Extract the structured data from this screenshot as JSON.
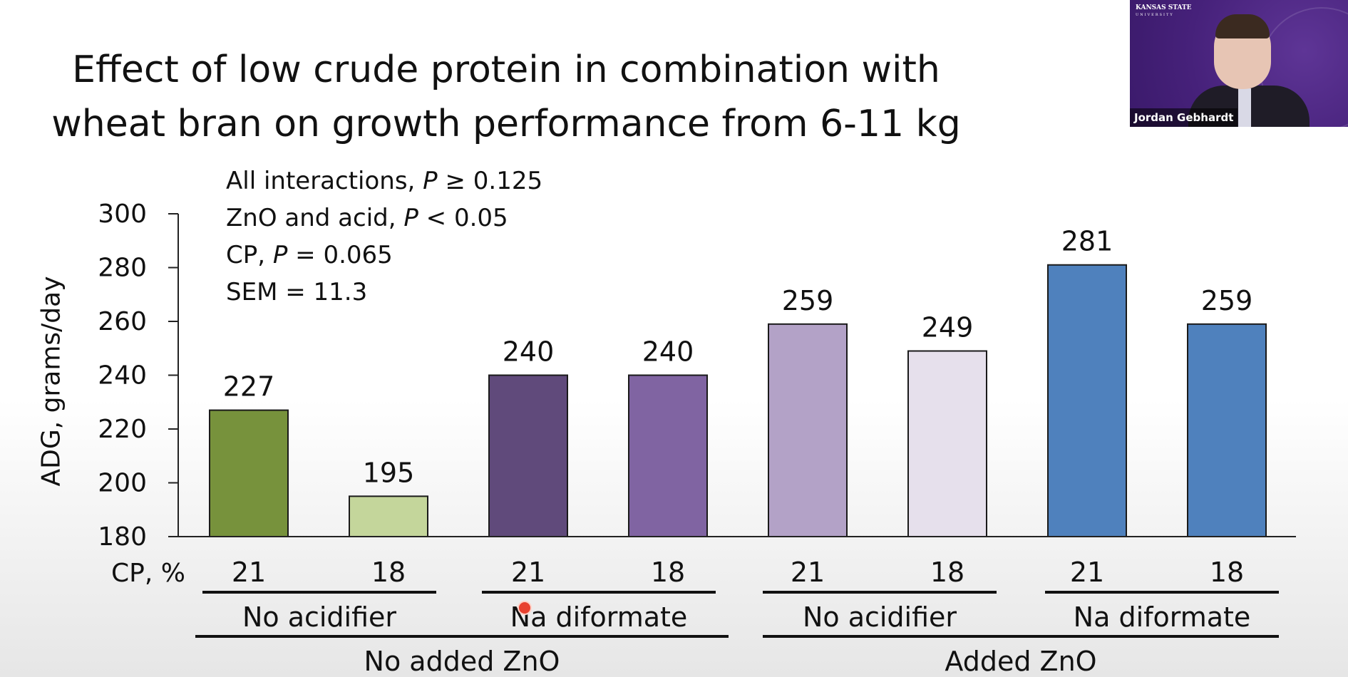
{
  "slide": {
    "title_line1": "Effect of low crude protein in combination with",
    "title_line2": "wheat bran on growth performance from 6-11 kg"
  },
  "stats": [
    {
      "prefix": "All interactions, ",
      "p": "P",
      "suffix": " ≥ 0.125"
    },
    {
      "prefix": "ZnO and acid, ",
      "p": "P",
      "suffix": " < 0.05"
    },
    {
      "prefix": "CP, ",
      "p": "P",
      "suffix": " = 0.065"
    },
    {
      "prefix": "SEM = 11.3",
      "p": "",
      "suffix": ""
    }
  ],
  "webcam": {
    "logo_line1": "KANSAS STATE",
    "logo_line2": "UNIVERSITY",
    "name": "Jordan Gebhardt"
  },
  "chart_data": {
    "type": "bar",
    "ylabel": "ADG, grams/day",
    "ylim": [
      180,
      300
    ],
    "yticks": [
      180,
      200,
      220,
      240,
      260,
      280,
      300
    ],
    "x_row_label": "CP, %",
    "categories": [
      "21",
      "18",
      "21",
      "18",
      "21",
      "18",
      "21",
      "18"
    ],
    "values": [
      227,
      195,
      240,
      240,
      259,
      249,
      281,
      259
    ],
    "data_labels": [
      "227",
      "195",
      "240",
      "240",
      "259",
      "249",
      "281",
      "259"
    ],
    "bar_colors": [
      "#77923c",
      "#c4d69b",
      "#604a7b",
      "#8064a2",
      "#b3a2c7",
      "#e6e0ec",
      "#4f81bd",
      "#4f81bd"
    ],
    "group_labels_level1": [
      "No acidifier",
      "Na diformate",
      "No acidifier",
      "Na diformate"
    ],
    "group_labels_level2": [
      "No added ZnO",
      "Added ZnO"
    ],
    "grid": false,
    "legend": "none"
  }
}
